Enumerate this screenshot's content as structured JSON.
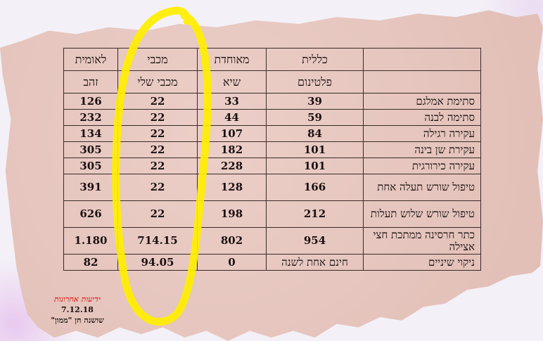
{
  "table": {
    "headers_row1": [
      "",
      "כללית",
      "מאוחדת",
      "מכבי",
      "לאומית"
    ],
    "headers_row2": [
      "",
      "פלטינום",
      "שיא",
      "מכבי שלי",
      "זהב"
    ],
    "rows": [
      {
        "label": "סתימת אמלגם",
        "values": [
          "39",
          "33",
          "22",
          "126"
        ]
      },
      {
        "label": "סתימה לבנה",
        "values": [
          "59",
          "44",
          "22",
          "232"
        ]
      },
      {
        "label": "עקירה רגילה",
        "values": [
          "84",
          "107",
          "22",
          "134"
        ]
      },
      {
        "label": "עקירת שן בינה",
        "values": [
          "101",
          "182",
          "22",
          "305"
        ]
      },
      {
        "label": "עקירה כירורגית",
        "values": [
          "101",
          "228",
          "22",
          "305"
        ]
      },
      {
        "label": "טיפול שורש תעלה אחת",
        "values": [
          "166",
          "128",
          "22",
          "391"
        ]
      },
      {
        "label": "טיפול שורש שלוש תעלות",
        "values": [
          "212",
          "198",
          "22",
          "626"
        ]
      },
      {
        "label": "כתר חרסינה ממתכת חצי אצילה",
        "values": [
          "954",
          "802",
          "714.15",
          "1.180"
        ]
      },
      {
        "label": "ניקוי שיניים",
        "values": [
          "חינם אחת לשנה",
          "0",
          "94.05",
          "82"
        ]
      }
    ]
  },
  "source": {
    "newspaper": "ידיעות אחרונות",
    "date": "7.12.18",
    "author": "שושנה חן \"ממון\""
  },
  "colors": {
    "paper": "#e9c8c0",
    "highlight": "#ffee00",
    "newspaper_red": "#e0302a"
  }
}
